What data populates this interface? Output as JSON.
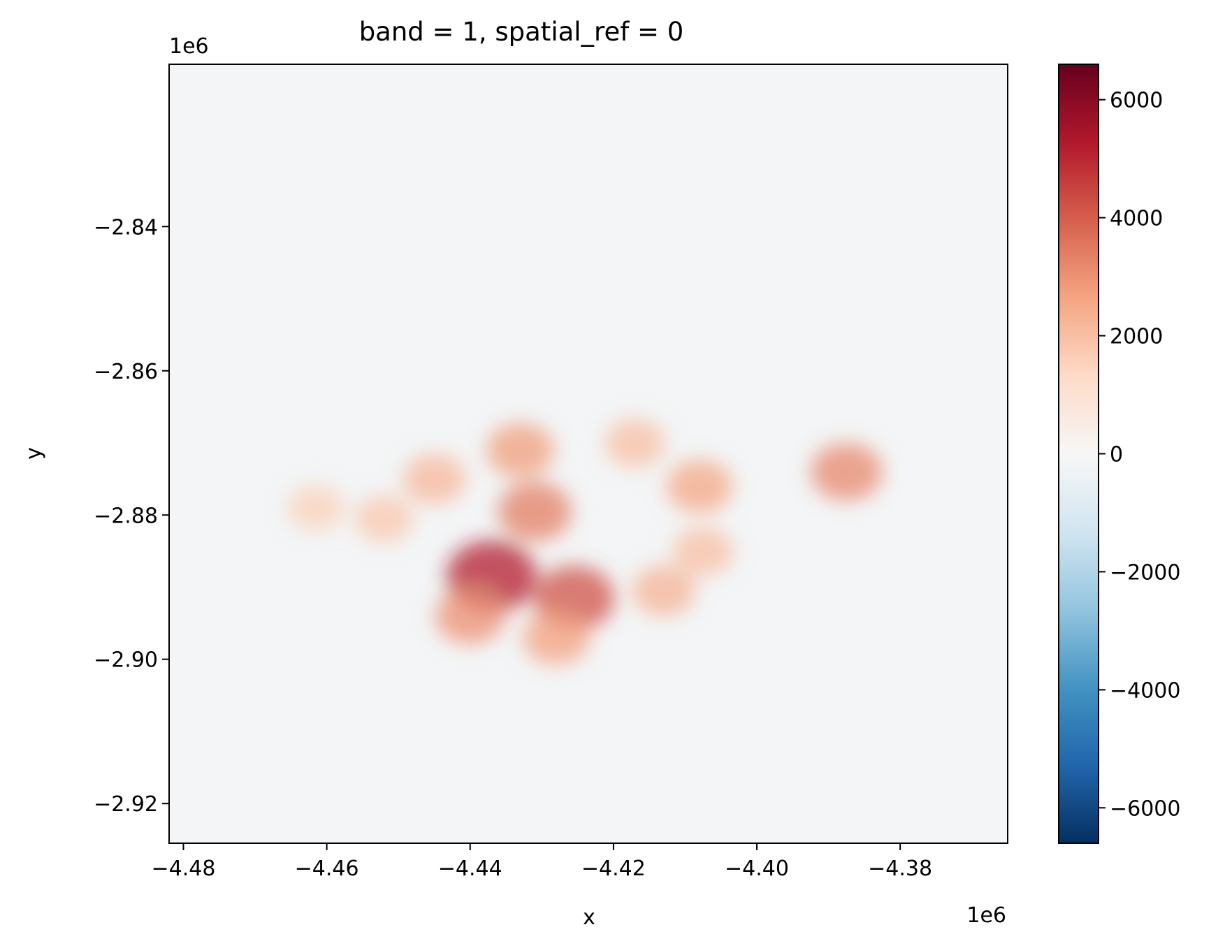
{
  "chart_data": {
    "type": "heatmap",
    "title": "band = 1, spatial_ref = 0",
    "xlabel": "x",
    "ylabel": "y",
    "x_offset_label": "1e6",
    "y_offset_label": "1e6",
    "xlim": [
      -4.482,
      -4.365
    ],
    "ylim": [
      -2.9255,
      -2.8175
    ],
    "x_ticks": [
      -4.48,
      -4.46,
      -4.44,
      -4.42,
      -4.4,
      -4.38
    ],
    "x_tick_labels": [
      "−4.48",
      "−4.46",
      "−4.44",
      "−4.42",
      "−4.40",
      "−4.38"
    ],
    "y_ticks": [
      -2.84,
      -2.86,
      -2.88,
      -2.9,
      -2.92
    ],
    "y_tick_labels": [
      "−2.84",
      "−2.86",
      "−2.88",
      "−2.90",
      "−2.92"
    ],
    "colorbar": {
      "colormap": "RdBu_r",
      "range": [
        -6600,
        6600
      ],
      "ticks": [
        6000,
        4000,
        2000,
        0,
        -2000,
        -4000,
        -6000
      ],
      "tick_labels": [
        "6000",
        "4000",
        "2000",
        "0",
        "−2000",
        "−4000",
        "−6000"
      ]
    },
    "background_value": -150,
    "hotspots": [
      {
        "x": -4.433,
        "y": -2.871,
        "value": 2800
      },
      {
        "x": -4.417,
        "y": -2.87,
        "value": 2000
      },
      {
        "x": -4.408,
        "y": -2.876,
        "value": 2600
      },
      {
        "x": -4.437,
        "y": -2.8885,
        "value": 5200
      },
      {
        "x": -4.4255,
        "y": -2.8915,
        "value": 4200
      },
      {
        "x": -4.431,
        "y": -2.8795,
        "value": 3400
      },
      {
        "x": -4.44,
        "y": -2.894,
        "value": 3000
      },
      {
        "x": -4.428,
        "y": -2.897,
        "value": 2700
      },
      {
        "x": -4.445,
        "y": -2.875,
        "value": 2200
      },
      {
        "x": -4.413,
        "y": -2.8905,
        "value": 2300
      },
      {
        "x": -4.4075,
        "y": -2.885,
        "value": 2000
      },
      {
        "x": -4.452,
        "y": -2.8805,
        "value": 1800
      },
      {
        "x": -4.3875,
        "y": -2.874,
        "value": 3200
      },
      {
        "x": -4.4615,
        "y": -2.879,
        "value": 1600
      }
    ]
  }
}
